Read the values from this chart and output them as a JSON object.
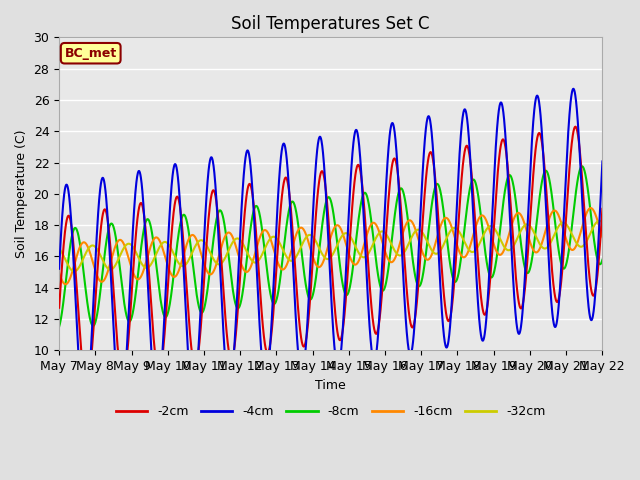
{
  "title": "Soil Temperatures Set C",
  "xlabel": "Time",
  "ylabel": "Soil Temperature (C)",
  "ylim": [
    10,
    30
  ],
  "background_color": "#e0e0e0",
  "plot_bg_color": "#e8e8e8",
  "annotation_text": "BC_met",
  "annotation_bg": "#ffff99",
  "annotation_border": "#8B0000",
  "annotation_text_color": "#8B0000",
  "legend_entries": [
    "-2cm",
    "-4cm",
    "-8cm",
    "-16cm",
    "-32cm"
  ],
  "line_colors": [
    "#dd0000",
    "#0000dd",
    "#00cc00",
    "#ff8800",
    "#cccc00"
  ],
  "line_widths": [
    1.5,
    1.5,
    1.5,
    1.5,
    1.5
  ],
  "start_day": 7,
  "end_day": 22,
  "points_per_day": 144,
  "tick_days": [
    7,
    8,
    9,
    10,
    11,
    12,
    13,
    14,
    15,
    16,
    17,
    18,
    19,
    20,
    21,
    22
  ]
}
